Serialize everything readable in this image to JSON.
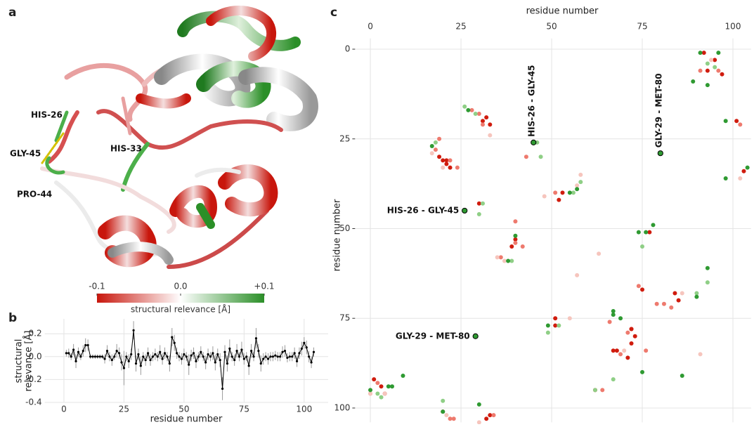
{
  "chart_data": [
    {
      "type": "structure",
      "panel": "a",
      "residue_labels": [
        "HIS-26",
        "GLY-45",
        "PRO-44",
        "HIS-33"
      ],
      "colorbar": {
        "ticks": [
          -0.1,
          {
            "value": 0,
            "label": "0.0"
          },
          {
            "value": 0.1,
            "label": "+0.1"
          }
        ],
        "lim": [
          -0.1,
          0.1
        ],
        "colors": [
          "#c8160c",
          "#ffffff",
          "#2b8f28"
        ],
        "label": "structural relevance [Å]"
      }
    },
    {
      "type": "line",
      "panel": "b",
      "xlabel": "residue number",
      "ylabel": [
        "structural",
        "relevance [Å]"
      ],
      "x": [
        1,
        2,
        3,
        4,
        5,
        6,
        7,
        8,
        9,
        10,
        11,
        12,
        13,
        14,
        15,
        16,
        17,
        18,
        19,
        20,
        21,
        22,
        23,
        24,
        25,
        26,
        27,
        28,
        29,
        30,
        31,
        32,
        33,
        34,
        35,
        36,
        37,
        38,
        39,
        40,
        41,
        42,
        43,
        44,
        45,
        46,
        47,
        48,
        49,
        50,
        51,
        52,
        53,
        54,
        55,
        56,
        57,
        58,
        59,
        60,
        61,
        62,
        63,
        64,
        65,
        66,
        67,
        68,
        69,
        70,
        71,
        72,
        73,
        74,
        75,
        76,
        77,
        78,
        79,
        80,
        81,
        82,
        83,
        84,
        85,
        86,
        87,
        88,
        89,
        90,
        91,
        92,
        93,
        94,
        95,
        96,
        97,
        98,
        99,
        100,
        101,
        102,
        103,
        104
      ],
      "values": [
        0.03,
        0.03,
        0.0,
        0.06,
        -0.04,
        0.04,
        0.0,
        0.05,
        0.1,
        0.1,
        0.0,
        0.0,
        0.0,
        0.0,
        0.0,
        0.0,
        -0.02,
        0.05,
        0.0,
        -0.03,
        0.0,
        0.05,
        0.03,
        -0.05,
        -0.1,
        0.0,
        -0.04,
        0.02,
        0.23,
        -0.06,
        0.02,
        -0.08,
        0.0,
        -0.03,
        0.03,
        -0.03,
        0.0,
        0.02,
        0.0,
        0.04,
        -0.02,
        0.03,
        0.0,
        -0.06,
        0.17,
        0.12,
        0.03,
        0.0,
        -0.02,
        0.02,
        0.0,
        -0.07,
        0.01,
        0.03,
        -0.04,
        0.0,
        0.04,
        0.0,
        -0.05,
        0.02,
        0.0,
        0.03,
        -0.05,
        0.02,
        -0.03,
        -0.28,
        0.04,
        -0.06,
        0.07,
        0.0,
        -0.03,
        0.05,
        0.0,
        0.06,
        -0.02,
        0.0,
        -0.08,
        0.05,
        0.0,
        0.16,
        0.05,
        -0.06,
        -0.02,
        0.0,
        -0.02,
        0.0,
        0.0,
        0.01,
        0.0,
        0.0,
        0.04,
        0.05,
        -0.01,
        0.0,
        0.0,
        0.03,
        -0.04,
        0.03,
        0.07,
        0.12,
        0.08,
        0.0,
        -0.05,
        0.04
      ],
      "errors": [
        0.03,
        0.04,
        0.03,
        0.05,
        0.06,
        0.04,
        0.03,
        0.05,
        0.06,
        0.05,
        0.02,
        0.02,
        0.02,
        0.02,
        0.02,
        0.02,
        0.04,
        0.05,
        0.04,
        0.05,
        0.03,
        0.06,
        0.05,
        0.07,
        0.15,
        0.04,
        0.06,
        0.05,
        0.08,
        0.07,
        0.05,
        0.08,
        0.04,
        0.05,
        0.05,
        0.05,
        0.04,
        0.05,
        0.04,
        0.06,
        0.05,
        0.05,
        0.04,
        0.07,
        0.08,
        0.07,
        0.05,
        0.04,
        0.05,
        0.05,
        0.04,
        0.09,
        0.05,
        0.05,
        0.06,
        0.04,
        0.05,
        0.04,
        0.06,
        0.05,
        0.04,
        0.06,
        0.07,
        0.05,
        0.06,
        0.1,
        0.06,
        0.07,
        0.08,
        0.04,
        0.05,
        0.06,
        0.04,
        0.07,
        0.05,
        0.04,
        0.08,
        0.06,
        0.04,
        0.09,
        0.06,
        0.07,
        0.05,
        0.04,
        0.05,
        0.04,
        0.04,
        0.04,
        0.04,
        0.04,
        0.05,
        0.05,
        0.04,
        0.04,
        0.04,
        0.05,
        0.05,
        0.05,
        0.06,
        0.05,
        0.06,
        0.05,
        0.05,
        0.04
      ],
      "color": "#000000",
      "error_color": "#9a9a9a",
      "xlim": [
        -8,
        110
      ],
      "xticks": [
        0,
        25,
        50,
        75,
        100
      ],
      "ylim": [
        -0.4,
        0.33
      ],
      "yticks": [
        0.2,
        {
          "value": 0,
          "label": "0.0"
        },
        -0.2,
        -0.4
      ],
      "grid": true
    },
    {
      "type": "scatter",
      "panel": "c",
      "xlabel": "residue number",
      "ylabel": "residue number",
      "xlim": [
        -4,
        105
      ],
      "xticks": [
        0,
        25,
        50,
        75,
        100
      ],
      "ylim": [
        104,
        -3
      ],
      "yticks": [
        0,
        25,
        50,
        75,
        100
      ],
      "grid": true,
      "series": [
        {
          "color": "#d01c0e",
          "x": [
            92,
            95,
            93,
            97,
            32,
            33,
            31,
            19,
            20,
            21,
            22,
            21,
            101,
            103,
            53,
            52,
            30,
            77,
            40,
            39,
            84,
            85,
            72,
            73,
            75,
            67,
            51,
            51,
            72,
            72,
            68,
            71,
            62,
            1,
            3,
            4,
            20,
            33,
            32
          ],
          "y": [
            1,
            3,
            6,
            7,
            19,
            21,
            20,
            30,
            31,
            32,
            33,
            31,
            20,
            34,
            40,
            42,
            43,
            51,
            53,
            55,
            68,
            70,
            78,
            80,
            67,
            84,
            75,
            77,
            82,
            78,
            84,
            86,
            95,
            92,
            94,
            96,
            101,
            102,
            103
          ]
        },
        {
          "color": "#ee7a6e",
          "x": [
            96,
            91,
            28,
            30,
            31,
            19,
            18,
            22,
            24,
            102,
            43,
            51,
            40,
            40,
            36,
            42,
            83,
            81,
            79,
            74,
            66,
            76,
            69,
            71,
            64,
            2,
            0,
            22,
            34,
            23
          ],
          "y": [
            6,
            6,
            17,
            18,
            21,
            25,
            28,
            31,
            33,
            21,
            30,
            40,
            54,
            48,
            58,
            55,
            72,
            71,
            71,
            66,
            76,
            84,
            85,
            79,
            95,
            93,
            96,
            103,
            102,
            103
          ],
          "sizes": []
        },
        {
          "color": "#f6c5bd",
          "x": [
            94,
            33,
            17,
            20,
            102,
            48,
            58,
            57,
            35,
            37,
            63,
            57,
            86,
            55,
            70,
            91,
            21,
            30,
            4,
            0
          ],
          "y": [
            3,
            24,
            29,
            33,
            36,
            41,
            35,
            38,
            58,
            59,
            57,
            63,
            68,
            75,
            84,
            85,
            102,
            104,
            96,
            96
          ]
        },
        {
          "color": "#8fcf86",
          "x": [
            95,
            93,
            26,
            29,
            18,
            46,
            47,
            58,
            56,
            31,
            30,
            75,
            39,
            93,
            90,
            49,
            52,
            67,
            62,
            2,
            3,
            20
          ],
          "y": [
            5,
            4,
            16,
            18,
            26,
            26,
            30,
            37,
            40,
            43,
            46,
            55,
            59,
            65,
            68,
            79,
            77,
            92,
            95,
            96,
            97,
            98
          ]
        },
        {
          "color": "#2f9a32",
          "x": [
            91,
            96,
            89,
            93,
            27,
            17,
            98,
            104,
            98,
            57,
            55,
            78,
            76,
            74,
            40,
            38,
            93,
            90,
            67,
            67,
            49,
            69,
            86,
            75,
            9,
            5,
            6,
            0,
            20,
            30
          ],
          "y": [
            1,
            1,
            9,
            10,
            17,
            27,
            20,
            33,
            36,
            39,
            40,
            49,
            51,
            51,
            52,
            59,
            61,
            69,
            73,
            74,
            77,
            75,
            91,
            90,
            91,
            94,
            94,
            95,
            101,
            99
          ]
        }
      ],
      "annotations": [
        {
          "text": "HIS-26 - GLY-45",
          "x": 45,
          "y": 26
        },
        {
          "text": "GLY-29 - MET-80",
          "x": 80,
          "y": 29
        },
        {
          "text": "HIS-26 - GLY-45",
          "x": 26,
          "y": 45
        },
        {
          "text": "GLY-29 - MET-80",
          "x": 29,
          "y": 80
        }
      ],
      "annotation_color": "#2f9a32"
    }
  ]
}
